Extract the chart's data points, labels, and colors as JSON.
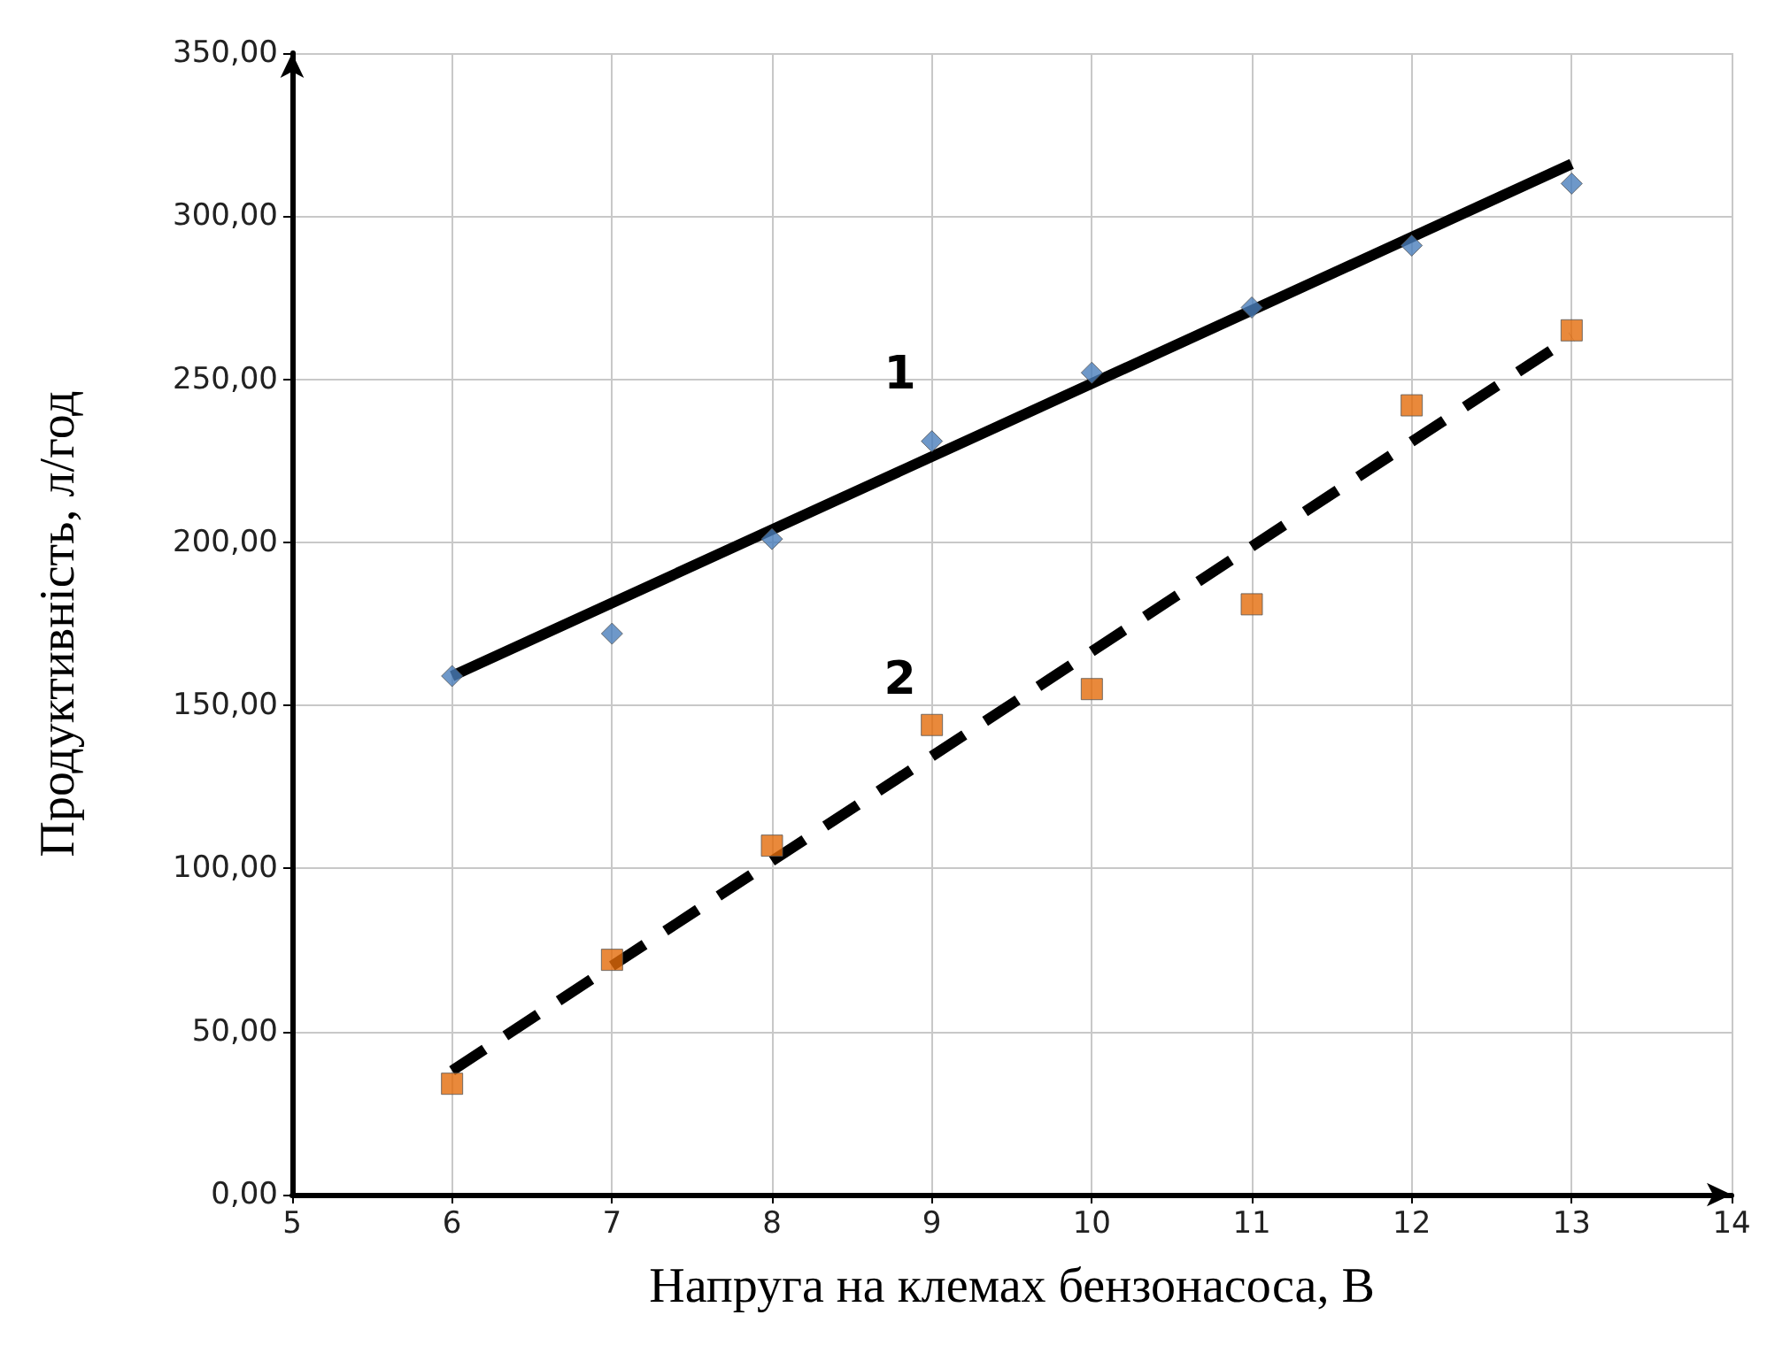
{
  "chart_data": {
    "type": "scatter",
    "xlabel": "Напруга на клемах бензонасоса, В",
    "ylabel": "Продуктивність, л/год",
    "xlim": [
      5,
      14
    ],
    "xticks": [
      5,
      6,
      7,
      8,
      9,
      10,
      11,
      12,
      13,
      14
    ],
    "ylim": [
      0,
      350
    ],
    "yticks": [
      {
        "value": 0,
        "label": "0,00"
      },
      {
        "value": 50,
        "label": "50,00"
      },
      {
        "value": 100,
        "label": "100,00"
      },
      {
        "value": 150,
        "label": "150,00"
      },
      {
        "value": 200,
        "label": "200,00"
      },
      {
        "value": 250,
        "label": "250,00"
      },
      {
        "value": 300,
        "label": "300,00"
      },
      {
        "value": 350,
        "label": "350,00"
      }
    ],
    "grid": true,
    "series": [
      {
        "color": "#4a7ebb",
        "marker": "diamond",
        "x": [
          6,
          7,
          8,
          9,
          10,
          11,
          12,
          13
        ],
        "values": [
          159,
          172,
          201,
          231,
          252,
          272,
          291,
          310
        ]
      },
      {
        "color": "#e46c0a",
        "marker": "square",
        "x": [
          6,
          7,
          8,
          9,
          10,
          11,
          12,
          13
        ],
        "values": [
          34,
          72,
          107,
          144,
          155,
          181,
          242,
          265
        ]
      },
      {
        "type": "line",
        "name": "1",
        "color": "#000000",
        "line_style": "solid",
        "marker": "none",
        "x": [
          6,
          13
        ],
        "values": [
          159,
          316
        ]
      },
      {
        "type": "line",
        "name": "2",
        "color": "#000000",
        "line_style": "dashed",
        "marker": "none",
        "x": [
          6,
          13
        ],
        "values": [
          38,
          263
        ]
      }
    ]
  }
}
